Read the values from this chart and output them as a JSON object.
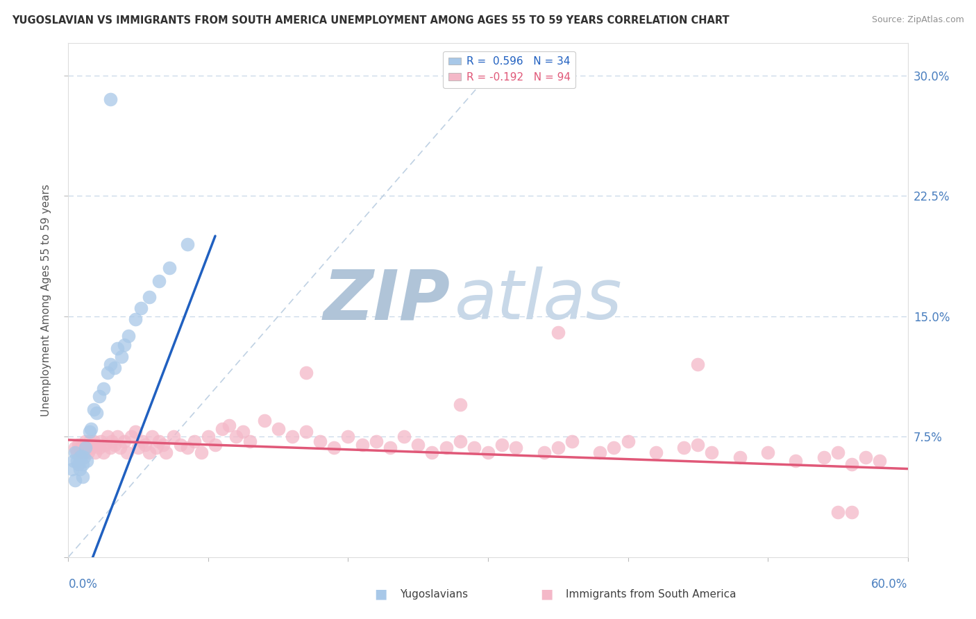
{
  "title": "YUGOSLAVIAN VS IMMIGRANTS FROM SOUTH AMERICA UNEMPLOYMENT AMONG AGES 55 TO 59 YEARS CORRELATION CHART",
  "source": "Source: ZipAtlas.com",
  "ylabel": "Unemployment Among Ages 55 to 59 years",
  "ytick_values": [
    0.0,
    0.075,
    0.15,
    0.225,
    0.3
  ],
  "ytick_labels": [
    "",
    "7.5%",
    "15.0%",
    "22.5%",
    "30.0%"
  ],
  "xlim": [
    0.0,
    0.6
  ],
  "ylim": [
    0.0,
    0.32
  ],
  "legend_blue_label": "Yugoslavians",
  "legend_pink_label": "Immigrants from South America",
  "R_blue": 0.596,
  "N_blue": 34,
  "R_pink": -0.192,
  "N_pink": 94,
  "blue_color": "#a8c8e8",
  "pink_color": "#f4b8c8",
  "blue_line_color": "#2060c0",
  "pink_line_color": "#e05878",
  "diag_line_color": "#b8cce0",
  "grid_color": "#c8d8e8",
  "watermark_ZIP_color": "#b0c4d8",
  "watermark_atlas_color": "#c8d8e8",
  "background_color": "#ffffff",
  "title_color": "#303030",
  "source_color": "#909090",
  "axis_label_color": "#555555",
  "tick_label_color": "#4a7fbf",
  "legend_text_blue": "#2060c0",
  "legend_text_pink": "#e05878",
  "blue_line_x": [
    0.0,
    0.105
  ],
  "blue_line_y": [
    -0.04,
    0.2
  ],
  "pink_line_x": [
    0.0,
    0.6
  ],
  "pink_line_y": [
    0.073,
    0.055
  ],
  "diag_line_x": [
    0.0,
    0.3
  ],
  "diag_line_y": [
    0.0,
    0.3
  ],
  "blue_points_x": [
    0.003,
    0.004,
    0.005,
    0.005,
    0.006,
    0.007,
    0.008,
    0.008,
    0.009,
    0.01,
    0.01,
    0.011,
    0.012,
    0.013,
    0.015,
    0.016,
    0.018,
    0.02,
    0.022,
    0.025,
    0.028,
    0.03,
    0.033,
    0.035,
    0.038,
    0.04,
    0.043,
    0.048,
    0.052,
    0.058,
    0.065,
    0.072,
    0.085,
    0.03
  ],
  "blue_points_y": [
    0.055,
    0.06,
    0.048,
    0.065,
    0.06,
    0.058,
    0.062,
    0.055,
    0.063,
    0.058,
    0.05,
    0.062,
    0.068,
    0.06,
    0.078,
    0.08,
    0.092,
    0.09,
    0.1,
    0.105,
    0.115,
    0.12,
    0.118,
    0.13,
    0.125,
    0.132,
    0.138,
    0.148,
    0.155,
    0.162,
    0.172,
    0.18,
    0.195,
    0.285
  ],
  "pink_points_x": [
    0.005,
    0.006,
    0.007,
    0.008,
    0.009,
    0.01,
    0.011,
    0.012,
    0.013,
    0.014,
    0.015,
    0.016,
    0.017,
    0.018,
    0.019,
    0.02,
    0.022,
    0.023,
    0.025,
    0.026,
    0.028,
    0.03,
    0.031,
    0.033,
    0.035,
    0.037,
    0.04,
    0.042,
    0.045,
    0.048,
    0.05,
    0.053,
    0.055,
    0.058,
    0.06,
    0.063,
    0.065,
    0.068,
    0.07,
    0.075,
    0.08,
    0.085,
    0.09,
    0.095,
    0.1,
    0.105,
    0.11,
    0.115,
    0.12,
    0.125,
    0.13,
    0.14,
    0.15,
    0.16,
    0.17,
    0.18,
    0.19,
    0.2,
    0.21,
    0.22,
    0.23,
    0.24,
    0.25,
    0.26,
    0.27,
    0.28,
    0.29,
    0.3,
    0.31,
    0.32,
    0.34,
    0.35,
    0.36,
    0.38,
    0.39,
    0.4,
    0.42,
    0.44,
    0.45,
    0.46,
    0.48,
    0.5,
    0.52,
    0.54,
    0.55,
    0.56,
    0.57,
    0.58,
    0.35,
    0.45,
    0.17,
    0.28,
    0.56,
    0.55
  ],
  "pink_points_y": [
    0.068,
    0.065,
    0.07,
    0.068,
    0.066,
    0.07,
    0.065,
    0.072,
    0.068,
    0.065,
    0.072,
    0.068,
    0.07,
    0.072,
    0.065,
    0.07,
    0.068,
    0.072,
    0.065,
    0.07,
    0.075,
    0.068,
    0.072,
    0.07,
    0.075,
    0.068,
    0.072,
    0.065,
    0.075,
    0.078,
    0.068,
    0.072,
    0.07,
    0.065,
    0.075,
    0.068,
    0.072,
    0.07,
    0.065,
    0.075,
    0.07,
    0.068,
    0.072,
    0.065,
    0.075,
    0.07,
    0.08,
    0.082,
    0.075,
    0.078,
    0.072,
    0.085,
    0.08,
    0.075,
    0.078,
    0.072,
    0.068,
    0.075,
    0.07,
    0.072,
    0.068,
    0.075,
    0.07,
    0.065,
    0.068,
    0.072,
    0.068,
    0.065,
    0.07,
    0.068,
    0.065,
    0.068,
    0.072,
    0.065,
    0.068,
    0.072,
    0.065,
    0.068,
    0.07,
    0.065,
    0.062,
    0.065,
    0.06,
    0.062,
    0.065,
    0.058,
    0.062,
    0.06,
    0.14,
    0.12,
    0.115,
    0.095,
    0.028,
    0.028
  ]
}
